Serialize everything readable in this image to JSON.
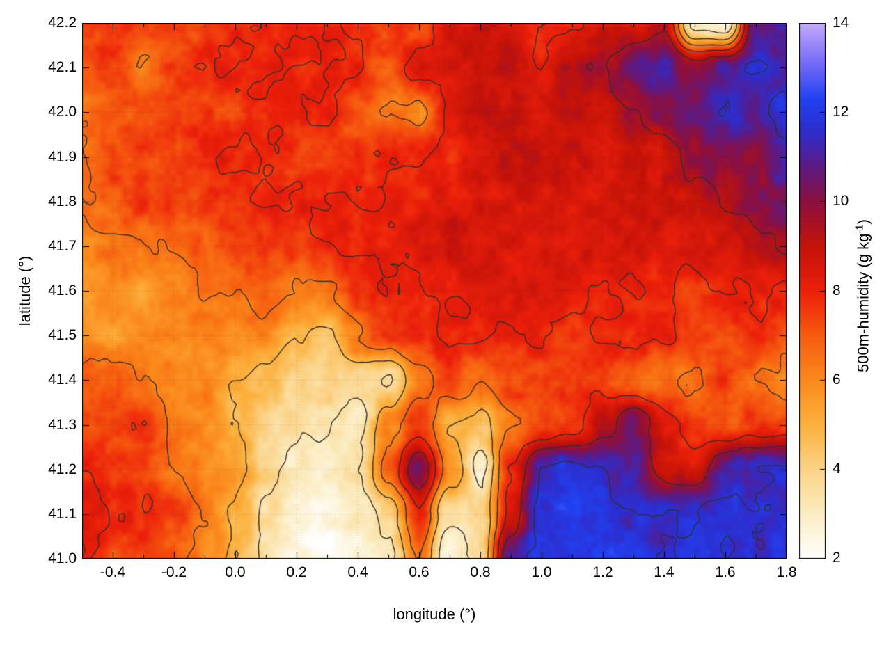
{
  "chart_data": {
    "type": "heatmap",
    "title": "",
    "xlabel": "longitude (°)",
    "ylabel": "latitude (°)",
    "colorbar_label": {
      "main": "500m-humidity (g kg",
      "sup": "-1",
      "end": ")"
    },
    "xlim": [
      -0.5,
      1.8
    ],
    "ylim": [
      41.0,
      42.2
    ],
    "x_ticks": [
      -0.4,
      -0.2,
      0,
      0.2,
      0.4,
      0.6,
      0.8,
      1.0,
      1.2,
      1.4,
      1.6,
      1.8
    ],
    "x_tick_labels": [
      "-0.4",
      "-0.2",
      "0.0",
      "0.2",
      "0.4",
      "0.6",
      "0.8",
      "1.0",
      "1.2",
      "1.4",
      "1.6",
      "1.8"
    ],
    "x_minor_ticks": [
      -0.5,
      -0.3,
      -0.1,
      0.1,
      0.3,
      0.5,
      0.7,
      0.9,
      1.1,
      1.3,
      1.5,
      1.7
    ],
    "y_ticks": [
      41.0,
      41.1,
      41.2,
      41.3,
      41.4,
      41.5,
      41.6,
      41.7,
      41.8,
      41.9,
      42.0,
      42.1,
      42.2
    ],
    "y_tick_labels": [
      "41.0",
      "41.1",
      "41.2",
      "41.3",
      "41.4",
      "41.5",
      "41.6",
      "41.7",
      "41.8",
      "41.9",
      "42.0",
      "42.1",
      "42.2"
    ],
    "colorbar": {
      "range": [
        2,
        14
      ],
      "ticks": [
        2,
        4,
        6,
        8,
        10,
        12,
        14
      ],
      "tick_labels": [
        "2",
        "4",
        "6",
        "8",
        "10",
        "12",
        "14"
      ]
    },
    "palette": [
      [
        2.0,
        "#ffffff"
      ],
      [
        3.0,
        "#fcedc3"
      ],
      [
        4.0,
        "#fbd387"
      ],
      [
        5.0,
        "#fcb13e"
      ],
      [
        6.0,
        "#fb8a1c"
      ],
      [
        7.0,
        "#f65c10"
      ],
      [
        8.0,
        "#ec200b"
      ],
      [
        9.0,
        "#c41309"
      ],
      [
        10.0,
        "#8c1040"
      ],
      [
        10.8,
        "#5c1b86"
      ],
      [
        11.6,
        "#2d2ecf"
      ],
      [
        12.3,
        "#2242f2"
      ],
      [
        13.2,
        "#7f71f7"
      ],
      [
        14.0,
        "#c3abfb"
      ]
    ],
    "contour_levels": [
      3.5,
      5,
      6.5,
      8,
      9.5,
      11.5
    ],
    "contour_color": "#2f2f2f",
    "grid": {
      "lon": [
        -0.5,
        -0.4,
        -0.3,
        -0.2,
        -0.1,
        0.0,
        0.1,
        0.2,
        0.3,
        0.4,
        0.5,
        0.6,
        0.7,
        0.8,
        0.9,
        1.0,
        1.1,
        1.2,
        1.3,
        1.4,
        1.5,
        1.6,
        1.7,
        1.8
      ],
      "lat": [
        42.2,
        42.1,
        42.0,
        41.9,
        41.8,
        41.7,
        41.6,
        41.5,
        41.4,
        41.3,
        41.2,
        41.1,
        41.0
      ],
      "values": [
        [
          7.5,
          7.5,
          7.5,
          7.5,
          7.5,
          7.8,
          8,
          8,
          8,
          8,
          7.5,
          7.5,
          8.5,
          9,
          8.5,
          8,
          8,
          8.5,
          8.5,
          9.5,
          3,
          2.5,
          10.5,
          11
        ],
        [
          7,
          7.5,
          6.5,
          7.5,
          8,
          8,
          8,
          8,
          8,
          8,
          7,
          8.5,
          8.5,
          8.5,
          9,
          8,
          9.5,
          9.5,
          10.5,
          11,
          10,
          11,
          11.5,
          11
        ],
        [
          6.5,
          7,
          7,
          7.5,
          7.5,
          7.5,
          8,
          8,
          8,
          7,
          6.5,
          6,
          8,
          9,
          9,
          8.5,
          9,
          8.5,
          9.5,
          10,
          10.5,
          11.5,
          11,
          12
        ],
        [
          6.5,
          7.5,
          7.5,
          7.5,
          8,
          8,
          8,
          7.5,
          7.5,
          7.5,
          8,
          8,
          8,
          8.5,
          9,
          9,
          9,
          8.5,
          9,
          8.5,
          10,
          10,
          10,
          11
        ],
        [
          6.5,
          7,
          7.5,
          7.5,
          7.5,
          7.5,
          8,
          8,
          8,
          8,
          8,
          8,
          8.5,
          8.5,
          8.5,
          8.5,
          8.5,
          8.5,
          8.5,
          9,
          9,
          9.5,
          10,
          10.5
        ],
        [
          6,
          6.5,
          6.5,
          6.5,
          7,
          7.5,
          7.5,
          7.5,
          8,
          8,
          8,
          8.5,
          9,
          8.5,
          8.5,
          8.5,
          8.5,
          8.5,
          8.5,
          8.5,
          8.5,
          8.5,
          9,
          9.5
        ],
        [
          5.5,
          6,
          5.5,
          6,
          6.5,
          6.5,
          7,
          6.5,
          6.5,
          7.5,
          8,
          8,
          8,
          8.5,
          8.5,
          8.5,
          8.5,
          8,
          8,
          8,
          7.5,
          8,
          8,
          8
        ],
        [
          6,
          5.5,
          6,
          6,
          6,
          6,
          6,
          5,
          4.5,
          6.5,
          7.5,
          8,
          8,
          8,
          8,
          8,
          7.5,
          8,
          8,
          8,
          7.5,
          7,
          8,
          7
        ],
        [
          7,
          7,
          6.5,
          6,
          6,
          5,
          4.5,
          4,
          4,
          4,
          3.5,
          6,
          7.5,
          6.5,
          7.5,
          7.5,
          7.5,
          7.5,
          7,
          6.5,
          6.5,
          7.5,
          6.5,
          6
        ],
        [
          7.5,
          7.5,
          8,
          6.5,
          6,
          5,
          4,
          3.5,
          3.5,
          3,
          6,
          7.5,
          5,
          4.5,
          6.5,
          7,
          7.5,
          9,
          10.5,
          8.5,
          7.5,
          7,
          7.5,
          7.5
        ],
        [
          8,
          7.5,
          7.5,
          6.5,
          6,
          5.5,
          4,
          3,
          3,
          3.5,
          7,
          10.5,
          6,
          3,
          8,
          11.5,
          12,
          11.5,
          11,
          9,
          8.5,
          11,
          11.5,
          11.5
        ],
        [
          8.5,
          8,
          8,
          7.5,
          6.5,
          5,
          3.5,
          2.5,
          2.5,
          3,
          4,
          8,
          3.5,
          4,
          8.5,
          12,
          12,
          12,
          11.5,
          11.5,
          11.5,
          12,
          11.5,
          11.5
        ],
        [
          8,
          7.5,
          7.5,
          7,
          6,
          5,
          3.5,
          2.5,
          2,
          2.5,
          3,
          6.5,
          2.5,
          4,
          11,
          12,
          12,
          12,
          12,
          11.5,
          12,
          11.5,
          11.5,
          12
        ]
      ]
    }
  }
}
